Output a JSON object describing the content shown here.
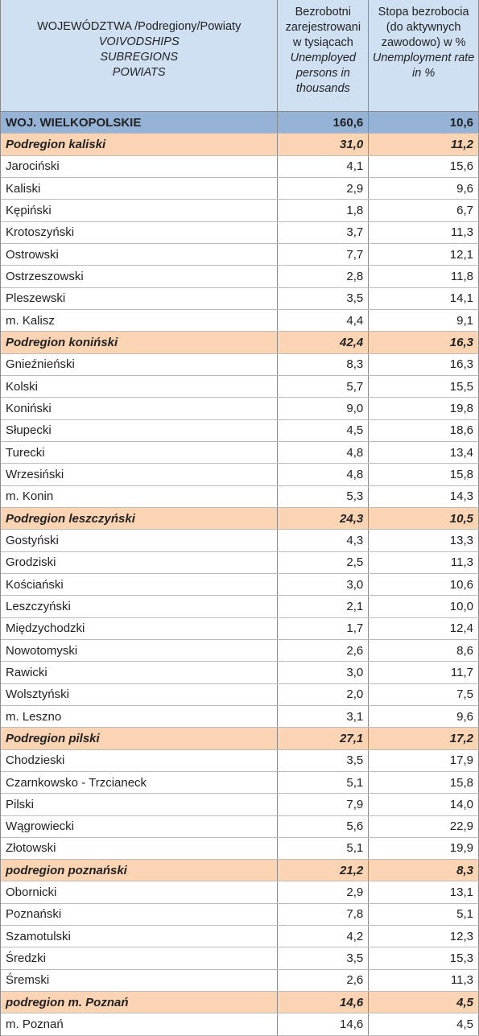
{
  "header": {
    "col1": {
      "pl": "WOJEWÓDZTWA /Podregiony/Powiaty",
      "en": [
        "VOIVODSHIPS",
        "SUBREGIONS",
        "POWIATS"
      ]
    },
    "col2": {
      "pl": "Bezrobotni zarejestrowani w tysiącach",
      "en": "Unemployed persons in thousands"
    },
    "col3": {
      "pl": "Stopa bezrobocia (do aktywnych zawodowo) w %",
      "en": "Unemployment rate in %"
    }
  },
  "voivodship": {
    "name": "WOJ. WIELKOPOLSKIE",
    "unemployed": "160,6",
    "rate": "10,6"
  },
  "subregions": [
    {
      "name": "Podregion kaliski",
      "unemployed": "31,0",
      "rate": "11,2",
      "powiats": [
        {
          "name": "Jarociński",
          "unemployed": "4,1",
          "rate": "15,6"
        },
        {
          "name": "Kaliski",
          "unemployed": "2,9",
          "rate": "9,6"
        },
        {
          "name": "Kępiński",
          "unemployed": "1,8",
          "rate": "6,7"
        },
        {
          "name": "Krotoszyński",
          "unemployed": "3,7",
          "rate": "11,3"
        },
        {
          "name": "Ostrowski",
          "unemployed": "7,7",
          "rate": "12,1"
        },
        {
          "name": "Ostrzeszowski",
          "unemployed": "2,8",
          "rate": "11,8"
        },
        {
          "name": "Pleszewski",
          "unemployed": "3,5",
          "rate": "14,1"
        },
        {
          "name": "m. Kalisz",
          "unemployed": "4,4",
          "rate": "9,1"
        }
      ]
    },
    {
      "name": "Podregion koniński",
      "unemployed": "42,4",
      "rate": "16,3",
      "powiats": [
        {
          "name": "Gnieźnieński",
          "unemployed": "8,3",
          "rate": "16,3"
        },
        {
          "name": "Kolski",
          "unemployed": "5,7",
          "rate": "15,5"
        },
        {
          "name": "Koniński",
          "unemployed": "9,0",
          "rate": "19,8"
        },
        {
          "name": "Słupecki",
          "unemployed": "4,5",
          "rate": "18,6"
        },
        {
          "name": "Turecki",
          "unemployed": "4,8",
          "rate": "13,4"
        },
        {
          "name": "Wrzesiński",
          "unemployed": "4,8",
          "rate": "15,8"
        },
        {
          "name": "m. Konin",
          "unemployed": "5,3",
          "rate": "14,3"
        }
      ]
    },
    {
      "name": "Podregion leszczyński",
      "unemployed": "24,3",
      "rate": "10,5",
      "powiats": [
        {
          "name": "Gostyński",
          "unemployed": "4,3",
          "rate": "13,3"
        },
        {
          "name": "Grodziski",
          "unemployed": "2,5",
          "rate": "11,3"
        },
        {
          "name": "Kościański",
          "unemployed": "3,0",
          "rate": "10,6"
        },
        {
          "name": "Leszczyński",
          "unemployed": "2,1",
          "rate": "10,0"
        },
        {
          "name": "Międzychodzki",
          "unemployed": "1,7",
          "rate": "12,4"
        },
        {
          "name": "Nowotomyski",
          "unemployed": "2,6",
          "rate": "8,6"
        },
        {
          "name": "Rawicki",
          "unemployed": "3,0",
          "rate": "11,7"
        },
        {
          "name": "Wolsztyński",
          "unemployed": "2,0",
          "rate": "7,5"
        },
        {
          "name": "m. Leszno",
          "unemployed": "3,1",
          "rate": "9,6"
        }
      ]
    },
    {
      "name": "Podregion pilski",
      "unemployed": "27,1",
      "rate": "17,2",
      "powiats": [
        {
          "name": "Chodzieski",
          "unemployed": "3,5",
          "rate": "17,9"
        },
        {
          "name": "Czarnkowsko - Trzcianeck",
          "unemployed": "5,1",
          "rate": "15,8"
        },
        {
          "name": "Pilski",
          "unemployed": "7,9",
          "rate": "14,0"
        },
        {
          "name": "Wągrowiecki",
          "unemployed": "5,6",
          "rate": "22,9"
        },
        {
          "name": "Złotowski",
          "unemployed": "5,1",
          "rate": "19,9"
        }
      ]
    },
    {
      "name": "podregion poznański",
      "unemployed": "21,2",
      "rate": "8,3",
      "powiats": [
        {
          "name": "Obornicki",
          "unemployed": "2,9",
          "rate": "13,1"
        },
        {
          "name": "Poznański",
          "unemployed": "7,8",
          "rate": "5,1"
        },
        {
          "name": "Szamotulski",
          "unemployed": "4,2",
          "rate": "12,3"
        },
        {
          "name": "Średzki",
          "unemployed": "3,5",
          "rate": "15,3"
        },
        {
          "name": "Śremski",
          "unemployed": "2,6",
          "rate": "11,3"
        }
      ]
    },
    {
      "name": "podregion m. Poznań",
      "unemployed": "14,6",
      "rate": "4,5",
      "powiats": [
        {
          "name": "m. Poznań",
          "unemployed": "14,6",
          "rate": "4,5"
        }
      ]
    }
  ]
}
